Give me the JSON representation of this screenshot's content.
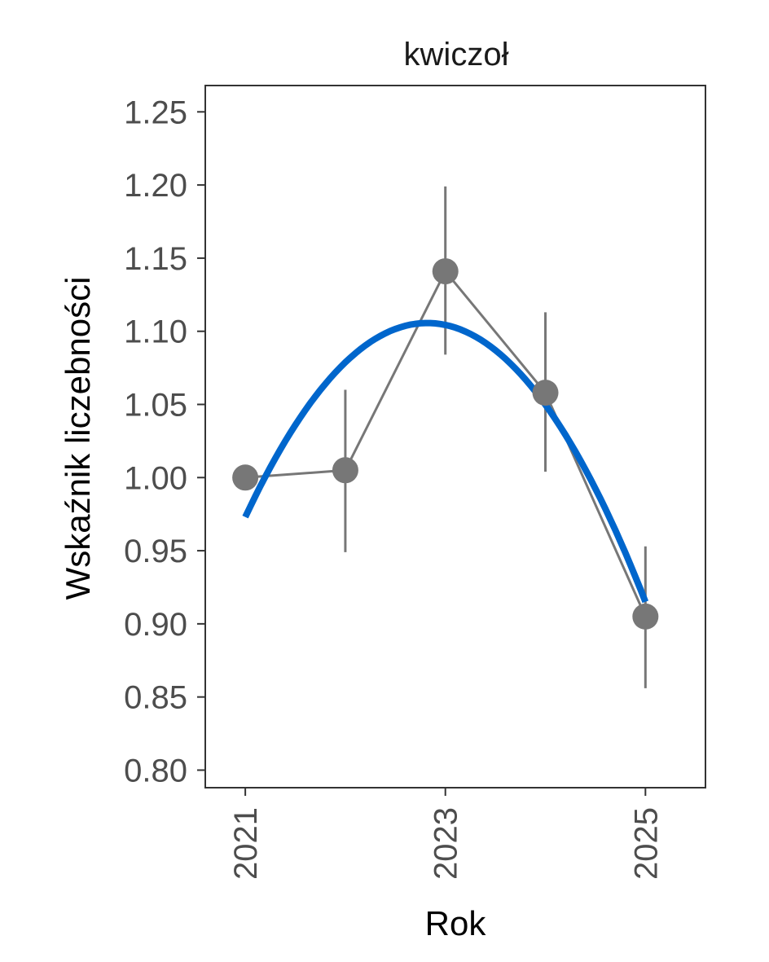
{
  "chart_data": {
    "type": "line",
    "title": "kwiczoł",
    "xlabel": "Rok",
    "ylabel": "Wskaźnik liczebności",
    "xlim": [
      2020.6,
      2025.6
    ],
    "ylim": [
      0.788,
      1.268
    ],
    "x_ticks": [
      2021,
      2023,
      2025
    ],
    "x_tick_labels": [
      "2021",
      "2023",
      "2025"
    ],
    "y_ticks": [
      0.8,
      0.85,
      0.9,
      0.95,
      1.0,
      1.05,
      1.1,
      1.15,
      1.2,
      1.25
    ],
    "y_tick_labels": [
      "0.80",
      "0.85",
      "0.90",
      "0.95",
      "1.00",
      "1.05",
      "1.10",
      "1.15",
      "1.20",
      "1.25"
    ],
    "grid": false,
    "series": [
      {
        "x": [
          2021,
          2022,
          2023,
          2024,
          2025
        ],
        "y": [
          1.0,
          1.005,
          1.141,
          1.058,
          0.905
        ],
        "y_low": [
          null,
          0.949,
          1.084,
          1.004,
          0.856
        ],
        "y_high": [
          null,
          1.06,
          1.199,
          1.113,
          0.953
        ],
        "color": "#777777"
      }
    ],
    "trend": {
      "type": "quadratic",
      "x": [
        2021,
        2022,
        2023,
        2024,
        2025
      ],
      "y": [
        0.977,
        1.071,
        1.104,
        1.058,
        0.911
      ],
      "color": "#0066cc"
    }
  }
}
